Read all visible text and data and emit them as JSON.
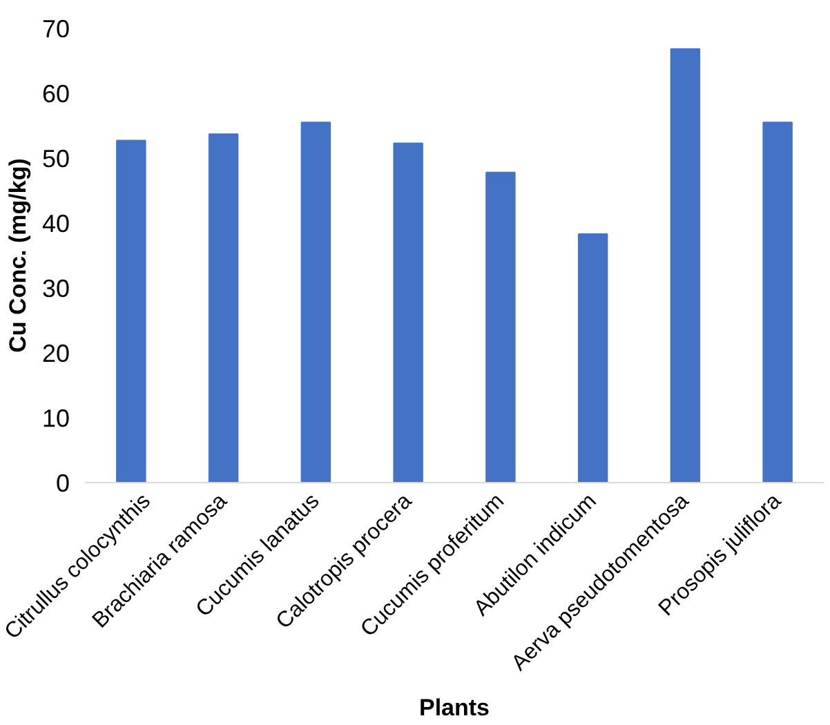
{
  "chart_data": {
    "type": "bar",
    "xlabel": "Plants",
    "ylabel": "Cu Conc. (mg/kg)",
    "categories": [
      "Citrullus colocynthis",
      "Brachiaria ramosa",
      "Cucumis lanatus",
      "Calotropis procera",
      "Cucumis proferitum",
      "Abutilon indicum",
      "Aerva pseudotomentosa",
      "Prosopis juliflora"
    ],
    "values": [
      52.7,
      53.7,
      55.5,
      52.3,
      47.8,
      38.3,
      66.8,
      55.5
    ],
    "color": "#4472c4",
    "ylim": [
      0,
      70
    ],
    "yticks": [
      0,
      10,
      20,
      30,
      40,
      50,
      60,
      70
    ],
    "grid": false
  }
}
